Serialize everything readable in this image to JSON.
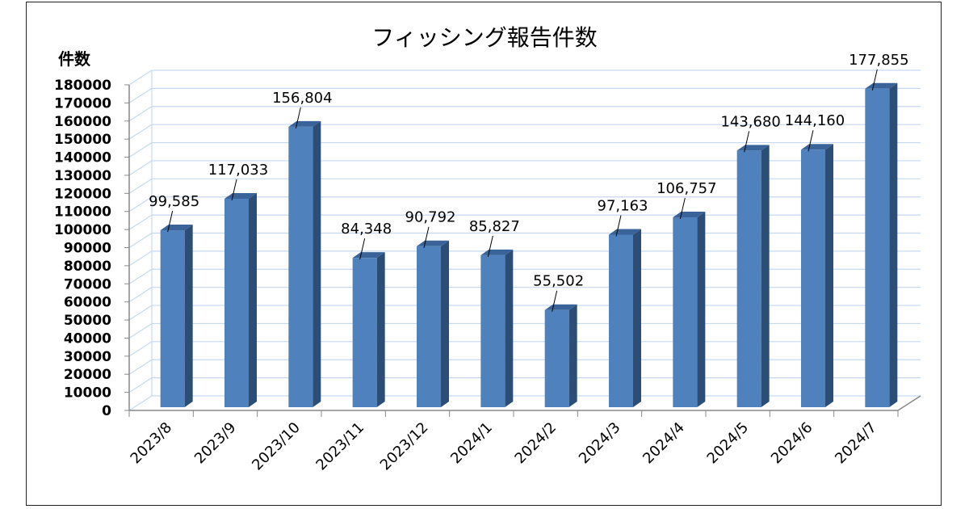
{
  "chart_data": {
    "type": "bar",
    "title": "フィッシング報告件数",
    "ylabel": "件数",
    "xlabel": "",
    "ylim": [
      0,
      180000
    ],
    "ytick_step": 10000,
    "grid": true,
    "style": "3d-column",
    "bar_color": "#4f81bd",
    "categories": [
      "2023/8",
      "2023/9",
      "2023/10",
      "2023/11",
      "2023/12",
      "2024/1",
      "2024/2",
      "2024/3",
      "2024/4",
      "2024/5",
      "2024/6",
      "2024/7"
    ],
    "values": [
      99585,
      117033,
      156804,
      84348,
      90792,
      85827,
      55502,
      97163,
      106757,
      143680,
      144160,
      177855
    ],
    "data_labels": [
      "99,585",
      "117,033",
      "156,804",
      "84,348",
      "90,792",
      "85,827",
      "55,502",
      "97,163",
      "106,757",
      "143,680",
      "144,160",
      "177,855"
    ]
  }
}
